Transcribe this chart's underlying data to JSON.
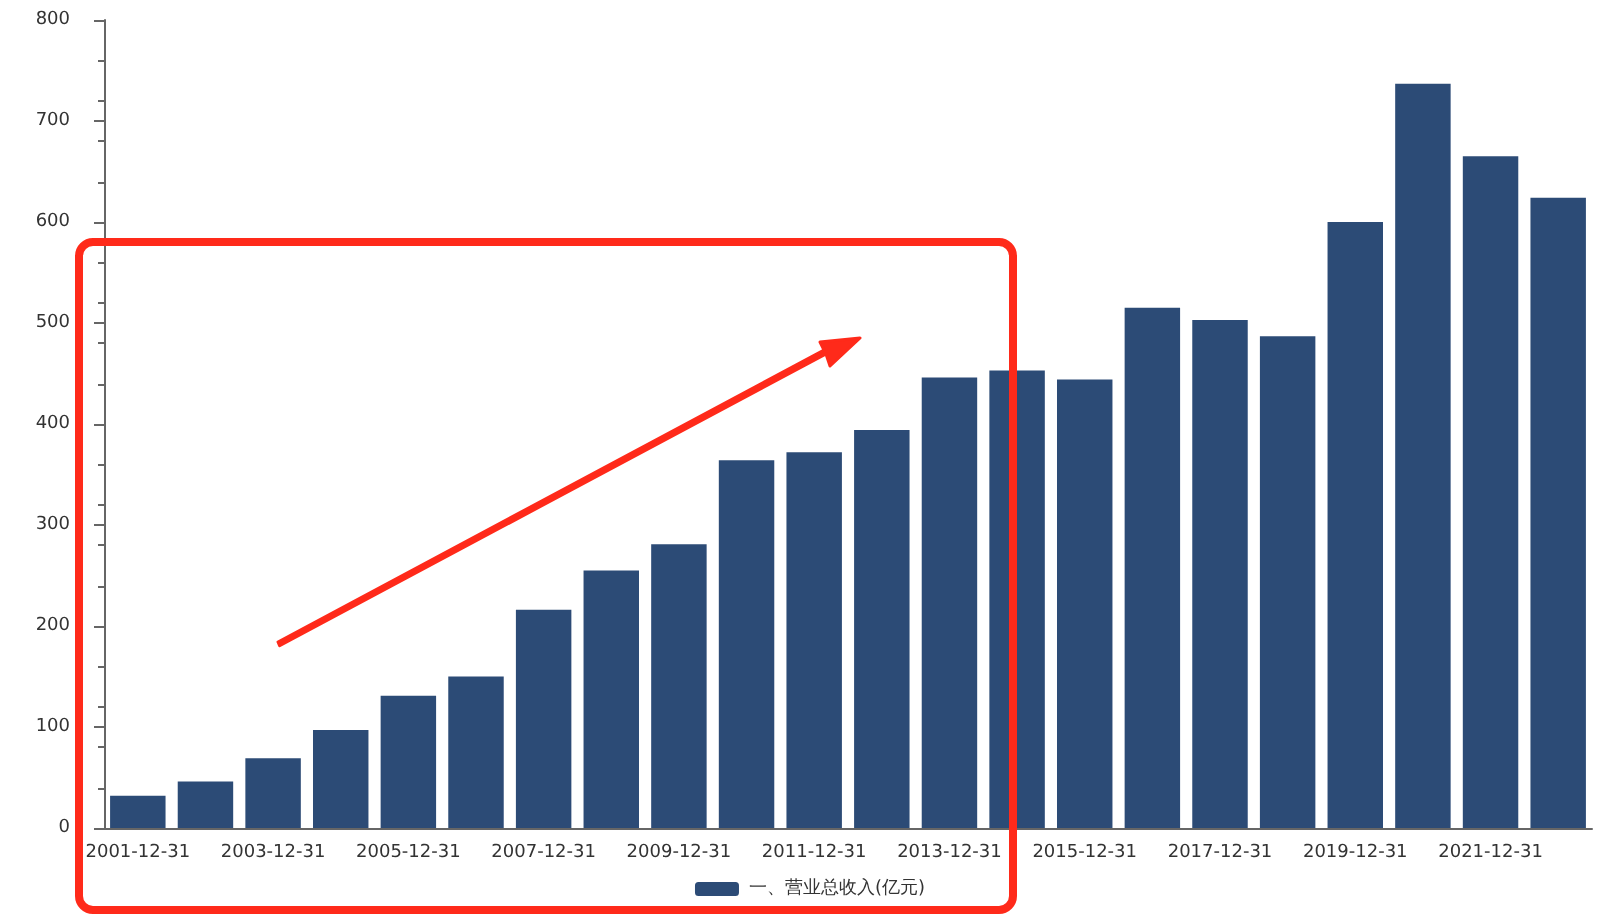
{
  "chart_data": {
    "type": "bar",
    "categories": [
      "2001-12-31",
      null,
      "2003-12-31",
      null,
      "2005-12-31",
      null,
      "2007-12-31",
      null,
      "2009-12-31",
      null,
      "2011-12-31",
      null,
      "2013-12-31",
      null,
      "2015-12-31",
      null,
      "2017-12-31",
      null,
      "2019-12-31",
      null,
      "2021-12-31",
      null
    ],
    "series": [
      {
        "name": "一、营业总收入(亿元)",
        "color": "#2c4b76",
        "values": [
          32,
          46,
          69,
          97,
          131,
          150,
          216,
          255,
          281,
          364,
          372,
          394,
          446,
          453,
          444,
          515,
          503,
          487,
          600,
          737,
          665,
          624
        ]
      }
    ],
    "ylim": [
      0,
      800
    ],
    "yticks": [
      0,
      100,
      200,
      300,
      400,
      500,
      600,
      700,
      800
    ],
    "grid": false,
    "legend": "bottom"
  }
}
